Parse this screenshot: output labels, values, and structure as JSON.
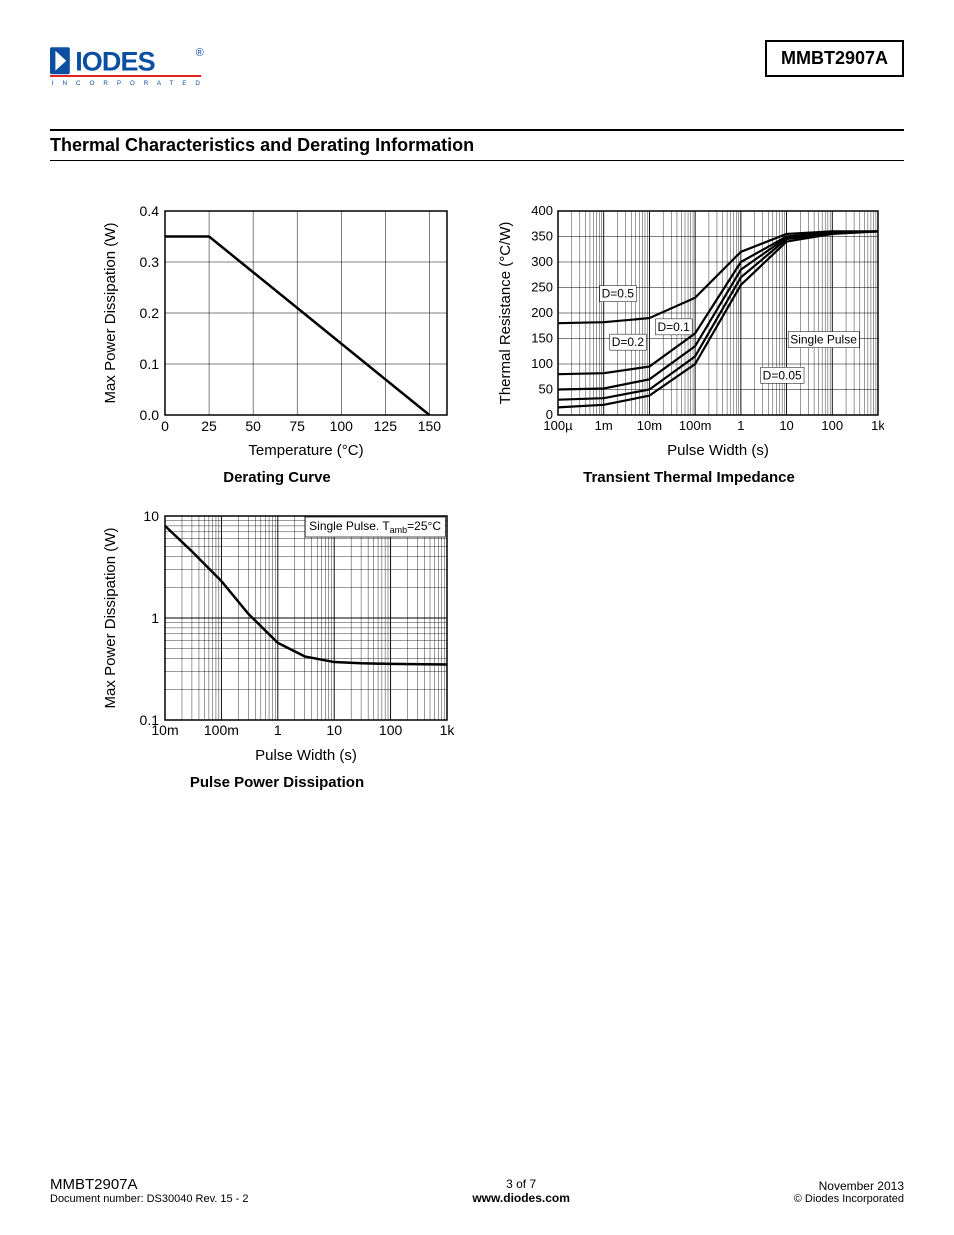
{
  "header": {
    "logo_color": "#0b4ea2",
    "logo_text_top": "DIODES",
    "logo_text_bottom": "INCORPORATED",
    "logo_reg": "®",
    "part_number": "MMBT2907A"
  },
  "section_title": "Thermal Characteristics and Derating Information",
  "chart1": {
    "type": "line",
    "title": "Derating Curve",
    "xlabel": "Temperature (°C)",
    "ylabel": "Max Power Dissipation (W)",
    "xlim": [
      0,
      160
    ],
    "ylim": [
      0,
      0.4
    ],
    "xticks": [
      0,
      25,
      50,
      75,
      100,
      125,
      150
    ],
    "yticks": [
      0.0,
      0.1,
      0.2,
      0.3,
      0.4
    ],
    "ytick_labels": [
      "0.0",
      "0.1",
      "0.2",
      "0.3",
      "0.4"
    ],
    "line_color": "#000000",
    "line_width": 2.5,
    "border_color": "#000000",
    "axis_fontsize": 15,
    "tick_fontsize": 14,
    "data": [
      [
        0,
        0.35
      ],
      [
        25,
        0.35
      ],
      [
        150,
        0.0
      ]
    ]
  },
  "chart2": {
    "type": "line",
    "title": "Transient Thermal Impedance",
    "xlabel": "Pulse Width (s)",
    "ylabel": "Thermal Resistance (°C/W)",
    "xscale": "log",
    "xlim": [
      0.0001,
      1000
    ],
    "ylim": [
      0,
      400
    ],
    "xticks": [
      0.0001,
      0.001,
      0.01,
      0.1,
      1,
      10,
      100,
      1000
    ],
    "xtick_labels": [
      "100µ",
      "1m",
      "10m",
      "100m",
      "1",
      "10",
      "100",
      "1k"
    ],
    "yticks": [
      0,
      50,
      100,
      150,
      200,
      250,
      300,
      350,
      400
    ],
    "line_color": "#000000",
    "line_width": 2.2,
    "border_color": "#000000",
    "axis_fontsize": 15,
    "tick_fontsize": 13,
    "series": [
      {
        "label": "D=0.5",
        "label_x": 0.0009,
        "label_y": 230,
        "data": [
          [
            0.0001,
            180
          ],
          [
            0.001,
            182
          ],
          [
            0.01,
            190
          ],
          [
            0.1,
            230
          ],
          [
            1,
            320
          ],
          [
            10,
            355
          ],
          [
            100,
            360
          ],
          [
            1000,
            360
          ]
        ]
      },
      {
        "label": "D=0.2",
        "label_x": 0.0015,
        "label_y": 135,
        "data": [
          [
            0.0001,
            80
          ],
          [
            0.001,
            82
          ],
          [
            0.01,
            95
          ],
          [
            0.1,
            160
          ],
          [
            1,
            300
          ],
          [
            10,
            350
          ],
          [
            100,
            358
          ],
          [
            1000,
            360
          ]
        ]
      },
      {
        "label": "D=0.1",
        "label_x": 0.015,
        "label_y": 165,
        "data": [
          [
            0.0001,
            50
          ],
          [
            0.001,
            52
          ],
          [
            0.01,
            70
          ],
          [
            0.1,
            135
          ],
          [
            1,
            285
          ],
          [
            10,
            348
          ],
          [
            100,
            357
          ],
          [
            1000,
            360
          ]
        ]
      },
      {
        "label": "D=0.05",
        "label_x": 3,
        "label_y": 70,
        "data": [
          [
            0.0001,
            30
          ],
          [
            0.001,
            33
          ],
          [
            0.01,
            50
          ],
          [
            0.1,
            115
          ],
          [
            1,
            270
          ],
          [
            10,
            345
          ],
          [
            100,
            356
          ],
          [
            1000,
            360
          ]
        ]
      },
      {
        "label": "Single Pulse",
        "label_x": 12,
        "label_y": 140,
        "data": [
          [
            0.0001,
            15
          ],
          [
            0.001,
            20
          ],
          [
            0.01,
            38
          ],
          [
            0.1,
            100
          ],
          [
            1,
            255
          ],
          [
            10,
            340
          ],
          [
            100,
            355
          ],
          [
            1000,
            360
          ]
        ]
      }
    ]
  },
  "chart3": {
    "type": "line",
    "title": "Pulse Power Dissipation",
    "xlabel": "Pulse Width (s)",
    "ylabel": "Max Power Dissipation (W)",
    "xscale": "log",
    "yscale": "log",
    "xlim": [
      0.01,
      1000
    ],
    "ylim": [
      0.1,
      10
    ],
    "xticks": [
      0.01,
      0.1,
      1,
      10,
      100,
      1000
    ],
    "xtick_labels": [
      "10m",
      "100m",
      "1",
      "10",
      "100",
      "1k"
    ],
    "yticks": [
      0.1,
      1,
      10
    ],
    "ytick_labels": [
      "0.1",
      "1",
      "10"
    ],
    "note": "Single Pulse. T",
    "note_sub": "amb",
    "note_suffix": "=25°C",
    "line_color": "#000000",
    "line_width": 2.5,
    "border_color": "#000000",
    "axis_fontsize": 15,
    "tick_fontsize": 14,
    "data": [
      [
        0.01,
        8
      ],
      [
        0.03,
        4.5
      ],
      [
        0.1,
        2.3
      ],
      [
        0.3,
        1.1
      ],
      [
        1,
        0.57
      ],
      [
        3,
        0.42
      ],
      [
        10,
        0.37
      ],
      [
        30,
        0.36
      ],
      [
        100,
        0.355
      ],
      [
        1000,
        0.35
      ]
    ]
  },
  "footer": {
    "left_top": "MMBT2907A",
    "left_bottom": "Document number: DS30040 Rev. 15 - 2",
    "center_top": "3 of 7",
    "center_bottom": "www.diodes.com",
    "right_top": "November 2013",
    "right_bottom": "© Diodes Incorporated"
  }
}
